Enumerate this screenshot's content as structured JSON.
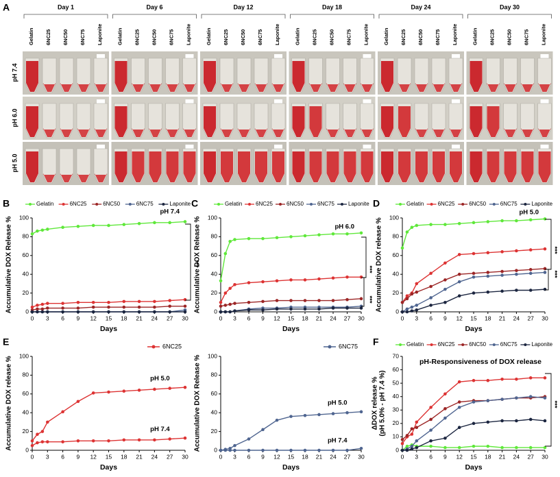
{
  "panel_a": {
    "label": "A",
    "days": [
      "Day 1",
      "Day 6",
      "Day 12",
      "Day 18",
      "Day 24",
      "Day 30"
    ],
    "samples": [
      "Gelatin",
      "6NC25",
      "6NC50",
      "6NC75",
      "Laponite"
    ],
    "ph": [
      "pH 7.4",
      "pH 6.0",
      "pH 5.0"
    ]
  },
  "chart_data": [
    {
      "type": "line",
      "panel": "B",
      "ylabel": [
        "Accumulative DOX Release %"
      ],
      "xlabel": "Days",
      "x": [
        0,
        1,
        2,
        3,
        6,
        9,
        12,
        15,
        18,
        21,
        24,
        27,
        30
      ],
      "xlim": [
        0,
        30
      ],
      "xticks": [
        0,
        3,
        6,
        9,
        12,
        15,
        18,
        21,
        24,
        27,
        30
      ],
      "ylim": [
        0,
        100
      ],
      "yticks": [
        0,
        20,
        40,
        60,
        80,
        100
      ],
      "annotations": [
        "pH 7.4",
        "***"
      ],
      "series": [
        {
          "name": "Gelatin",
          "color": "#5fe83a",
          "values": [
            83,
            86,
            87,
            88,
            90,
            91,
            92,
            92,
            93,
            94,
            95,
            95,
            96
          ]
        },
        {
          "name": "6NC25",
          "color": "#dd3333",
          "values": [
            5,
            7,
            8,
            9,
            9,
            10,
            10,
            10,
            11,
            11,
            11,
            12,
            13
          ]
        },
        {
          "name": "6NC50",
          "color": "#9c2626",
          "values": [
            2,
            3,
            3,
            4,
            4,
            4,
            5,
            5,
            5,
            5,
            5,
            6,
            6
          ]
        },
        {
          "name": "6NC75",
          "color": "#4f6590",
          "values": [
            0,
            0,
            0,
            0,
            0,
            0,
            0,
            0,
            0,
            0,
            0,
            0,
            2
          ]
        },
        {
          "name": "Laponite",
          "color": "#1c2640",
          "values": [
            0,
            0,
            0,
            0,
            0,
            0,
            0,
            0,
            0,
            0,
            0,
            0,
            0
          ]
        }
      ]
    },
    {
      "type": "line",
      "panel": "C",
      "ylabel": [
        "Accumulative DOX Release %"
      ],
      "xlabel": "Days",
      "x": [
        0,
        1,
        2,
        3,
        6,
        9,
        12,
        15,
        18,
        21,
        24,
        27,
        30
      ],
      "xlim": [
        0,
        30
      ],
      "xticks": [
        0,
        3,
        6,
        9,
        12,
        15,
        18,
        21,
        24,
        27,
        30
      ],
      "ylim": [
        0,
        100
      ],
      "yticks": [
        0,
        20,
        40,
        60,
        80,
        100
      ],
      "annotations": [
        "pH 6.0",
        "***",
        "***"
      ],
      "series": [
        {
          "name": "Gelatin",
          "color": "#5fe83a",
          "values": [
            33,
            62,
            75,
            77,
            78,
            78,
            79,
            80,
            81,
            82,
            83,
            83,
            84
          ]
        },
        {
          "name": "6NC25",
          "color": "#dd3333",
          "values": [
            10,
            20,
            25,
            29,
            31,
            32,
            33,
            34,
            34,
            35,
            36,
            37,
            37
          ]
        },
        {
          "name": "6NC50",
          "color": "#9c2626",
          "values": [
            6,
            7,
            8,
            9,
            10,
            11,
            12,
            12,
            12,
            12,
            12,
            13,
            14
          ]
        },
        {
          "name": "6NC75",
          "color": "#4f6590",
          "values": [
            0,
            0,
            0,
            1,
            3,
            4,
            4,
            5,
            5,
            5,
            5,
            5,
            6
          ]
        },
        {
          "name": "Laponite",
          "color": "#1c2640",
          "values": [
            0,
            0,
            0,
            1,
            2,
            2,
            3,
            3,
            3,
            3,
            4,
            4,
            4
          ]
        }
      ]
    },
    {
      "type": "line",
      "panel": "D",
      "ylabel": [
        "Accumulative DOX release %"
      ],
      "xlabel": "Days",
      "x": [
        0,
        1,
        2,
        3,
        6,
        9,
        12,
        15,
        18,
        21,
        24,
        27,
        30
      ],
      "xlim": [
        0,
        30
      ],
      "xticks": [
        0,
        3,
        6,
        9,
        12,
        15,
        18,
        21,
        24,
        27,
        30
      ],
      "ylim": [
        0,
        100
      ],
      "yticks": [
        0,
        20,
        40,
        60,
        80,
        100
      ],
      "annotations": [
        "pH 5.0",
        "***",
        "***"
      ],
      "series": [
        {
          "name": "Gelatin",
          "color": "#5fe83a",
          "values": [
            68,
            85,
            90,
            92,
            93,
            93,
            94,
            95,
            96,
            97,
            97,
            98,
            99
          ]
        },
        {
          "name": "6NC25",
          "color": "#dd3333",
          "values": [
            10,
            17,
            20,
            30,
            41,
            52,
            61,
            62,
            63,
            64,
            65,
            66,
            67
          ]
        },
        {
          "name": "6NC50",
          "color": "#9c2626",
          "values": [
            10,
            14,
            19,
            21,
            27,
            34,
            40,
            41,
            42,
            43,
            44,
            45,
            46
          ]
        },
        {
          "name": "6NC75",
          "color": "#4f6590",
          "values": [
            0,
            3,
            5,
            7,
            15,
            24,
            32,
            37,
            38,
            39,
            40,
            41,
            42
          ]
        },
        {
          "name": "Laponite",
          "color": "#1c2640",
          "values": [
            0,
            0,
            1,
            2,
            7,
            10,
            17,
            20,
            21,
            22,
            23,
            23,
            24
          ]
        }
      ]
    },
    {
      "type": "line",
      "panel": "E",
      "legend": "6NC25",
      "ylabel": [
        "Accumulative DOX release %"
      ],
      "xlabel": "Days",
      "x": [
        0,
        1,
        2,
        3,
        6,
        9,
        12,
        15,
        18,
        21,
        24,
        27,
        30
      ],
      "xlim": [
        0,
        30
      ],
      "xticks": [
        0,
        3,
        6,
        9,
        12,
        15,
        18,
        21,
        24,
        27,
        30
      ],
      "ylim": [
        0,
        100
      ],
      "yticks": [
        0,
        20,
        40,
        60,
        80,
        100
      ],
      "series": [
        {
          "name": "pH 5.0",
          "color": "#dd3333",
          "values": [
            10,
            17,
            20,
            30,
            41,
            52,
            61,
            62,
            63,
            64,
            65,
            66,
            67
          ]
        },
        {
          "name": "pH 7.4",
          "color": "#dd3333",
          "values": [
            5,
            8,
            9,
            9,
            9,
            10,
            10,
            10,
            11,
            11,
            11,
            12,
            13
          ]
        }
      ]
    },
    {
      "type": "line",
      "legend": "6NC75",
      "ylabel": [
        "Accumulative DOX Release %"
      ],
      "xlabel": "Days",
      "x": [
        0,
        1,
        2,
        3,
        6,
        9,
        12,
        15,
        18,
        21,
        24,
        27,
        30
      ],
      "xlim": [
        0,
        30
      ],
      "xticks": [
        0,
        3,
        6,
        9,
        12,
        15,
        18,
        21,
        24,
        27,
        30
      ],
      "ylim": [
        0,
        100
      ],
      "yticks": [
        0,
        20,
        40,
        60,
        80,
        100
      ],
      "series": [
        {
          "name": "pH 5.0",
          "color": "#4f6590",
          "values": [
            0,
            1,
            2,
            5,
            12,
            22,
            32,
            36,
            37,
            38,
            39,
            40,
            41
          ]
        },
        {
          "name": "pH 7.4",
          "color": "#4f6590",
          "values": [
            0,
            0,
            0,
            0,
            0,
            0,
            0,
            0,
            0,
            0,
            0,
            0,
            2
          ]
        }
      ]
    },
    {
      "type": "line",
      "panel": "F",
      "title": "pH-Responsiveness of DOX release",
      "ylabel": [
        "ΔDOX release %",
        "(pH 5.0% - pH 7.4 %)"
      ],
      "xlabel": "Days",
      "x": [
        0,
        1,
        2,
        3,
        6,
        9,
        12,
        15,
        18,
        21,
        24,
        27,
        30
      ],
      "xlim": [
        0,
        30
      ],
      "xticks": [
        0,
        3,
        6,
        9,
        12,
        15,
        18,
        21,
        24,
        27,
        30
      ],
      "ylim": [
        0,
        70
      ],
      "yticks": [
        0,
        10,
        20,
        30,
        40,
        50,
        60,
        70
      ],
      "annotations": [
        "***"
      ],
      "series": [
        {
          "name": "Gelatin",
          "color": "#5fe83a",
          "values": [
            0,
            3,
            4,
            3,
            3,
            2,
            2,
            3,
            3,
            2,
            2,
            2,
            2
          ]
        },
        {
          "name": "6NC25",
          "color": "#dd3333",
          "values": [
            5,
            10,
            12,
            21,
            32,
            42,
            51,
            52,
            52,
            53,
            53,
            54,
            54
          ]
        },
        {
          "name": "6NC50",
          "color": "#9c2626",
          "values": [
            8,
            11,
            16,
            17,
            23,
            31,
            36,
            37,
            37,
            38,
            39,
            39,
            40
          ]
        },
        {
          "name": "6NC75",
          "color": "#4f6590",
          "values": [
            0,
            1,
            3,
            7,
            15,
            24,
            32,
            36,
            37,
            38,
            39,
            40,
            39
          ]
        },
        {
          "name": "Laponite",
          "color": "#1c2640",
          "values": [
            0,
            0,
            1,
            2,
            7,
            9,
            17,
            20,
            21,
            22,
            22,
            23,
            22
          ]
        }
      ]
    }
  ]
}
